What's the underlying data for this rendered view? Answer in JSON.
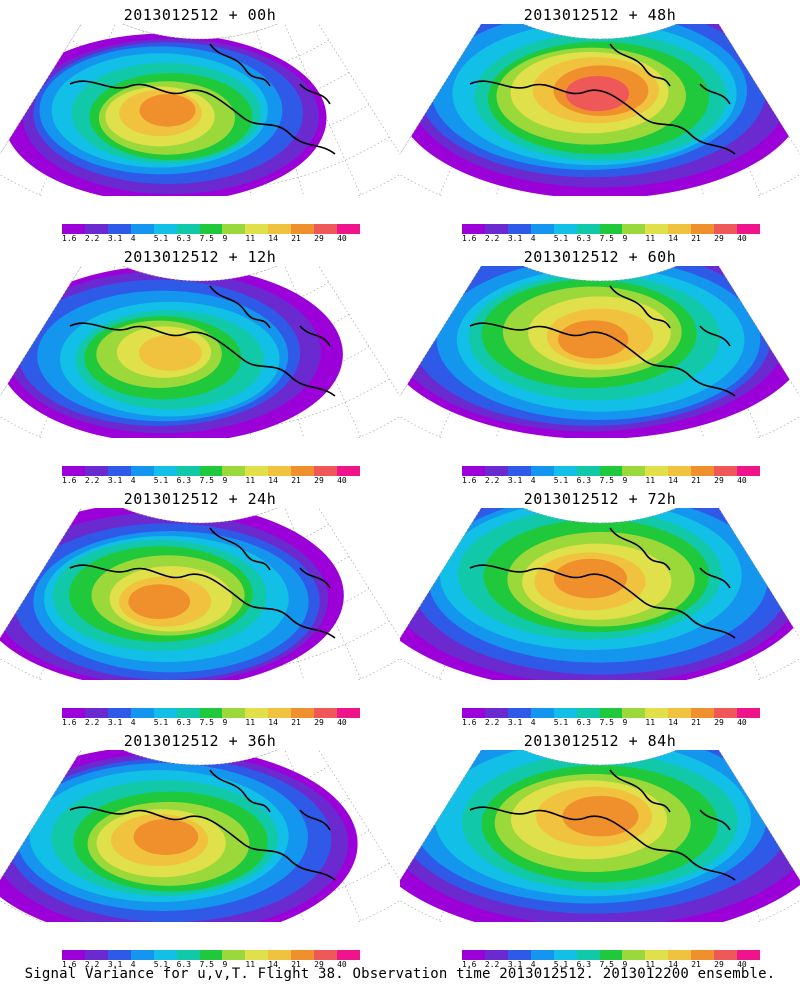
{
  "panels": [
    {
      "title": "2013012512 + 00h",
      "lead_hours": 0,
      "peak_level": 10
    },
    {
      "title": "2013012512 + 48h",
      "lead_hours": 48,
      "peak_level": 11
    },
    {
      "title": "2013012512 + 12h",
      "lead_hours": 12,
      "peak_level": 9
    },
    {
      "title": "2013012512 + 60h",
      "lead_hours": 60,
      "peak_level": 10
    },
    {
      "title": "2013012512 + 24h",
      "lead_hours": 24,
      "peak_level": 10
    },
    {
      "title": "2013012512 + 72h",
      "lead_hours": 72,
      "peak_level": 10
    },
    {
      "title": "2013012512 + 36h",
      "lead_hours": 36,
      "peak_level": 10
    },
    {
      "title": "2013012512 + 84h",
      "lead_hours": 84,
      "peak_level": 10
    }
  ],
  "colorbar": {
    "labels": [
      "1.6",
      "2.2",
      "3.1",
      "4",
      "5.1",
      "6.3",
      "7.5",
      "9",
      "11",
      "14",
      "21",
      "29",
      "40"
    ],
    "colors": [
      "#9c00d8",
      "#6a2ad0",
      "#2f5ae8",
      "#1496ee",
      "#12bfe6",
      "#11c9a8",
      "#20c83c",
      "#9bd83a",
      "#dfe04a",
      "#f0c23e",
      "#f0902c",
      "#ee5858",
      "#f0148c"
    ]
  },
  "caption": "Signal Variance for u,v,T. Flight 38. Observation time 2013012512. 2013012200 ensemble."
}
